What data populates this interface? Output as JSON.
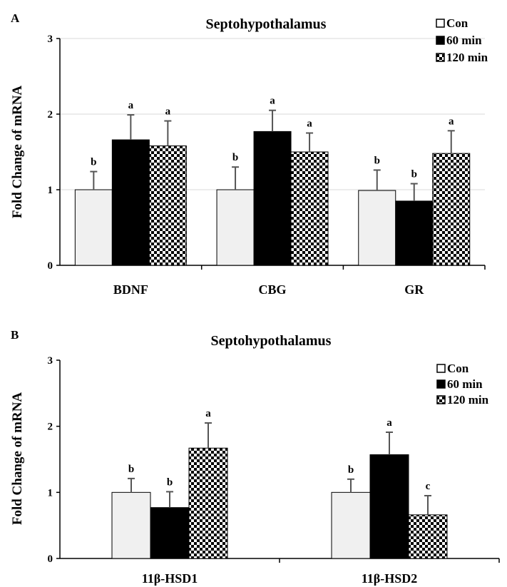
{
  "colors": {
    "con": "#f0f0f0",
    "m60": "#000000",
    "m120_light": "#ffffff",
    "m120_dark": "#000000",
    "grid": "#d9d9d9",
    "error_bar": "#555555"
  },
  "chart_data": [
    {
      "panel": "A",
      "type": "bar",
      "title": "Septohypothalamus",
      "ylabel": "Fold Change of mRNA",
      "xlabel": "",
      "ylim": [
        0,
        3
      ],
      "yticks": [
        "0",
        "1",
        "2",
        "3"
      ],
      "grid": true,
      "legend_position": "top-right",
      "categories": [
        "BDNF",
        "CBG",
        "GR"
      ],
      "series": [
        {
          "name": "Con",
          "pattern": "light-gray",
          "values": [
            1.0,
            1.0,
            0.99
          ],
          "errors": [
            0.24,
            0.3,
            0.27
          ],
          "labels": [
            "b",
            "b",
            "b"
          ]
        },
        {
          "name": "60 min",
          "pattern": "solid-black",
          "values": [
            1.66,
            1.77,
            0.85
          ],
          "errors": [
            0.33,
            0.28,
            0.23
          ],
          "labels": [
            "a",
            "a",
            "b"
          ]
        },
        {
          "name": "120 min",
          "pattern": "checker",
          "values": [
            1.58,
            1.5,
            1.48
          ],
          "errors": [
            0.33,
            0.25,
            0.3
          ],
          "labels": [
            "a",
            "a",
            "a"
          ]
        }
      ]
    },
    {
      "panel": "B",
      "type": "bar",
      "title": "Septohypothalamus",
      "ylabel": "Fold Change of mRNA",
      "xlabel": "",
      "ylim": [
        0,
        3
      ],
      "yticks": [
        "0",
        "1",
        "2",
        "3"
      ],
      "grid": false,
      "legend_position": "top-right",
      "categories": [
        "11β-HSD1",
        "11β-HSD2"
      ],
      "series": [
        {
          "name": "Con",
          "pattern": "light-gray",
          "values": [
            1.0,
            1.0
          ],
          "errors": [
            0.21,
            0.2
          ],
          "labels": [
            "b",
            "b"
          ]
        },
        {
          "name": "60 min",
          "pattern": "solid-black",
          "values": [
            0.77,
            1.57
          ],
          "errors": [
            0.24,
            0.34
          ],
          "labels": [
            "b",
            "a"
          ]
        },
        {
          "name": "120 min",
          "pattern": "checker",
          "values": [
            1.67,
            0.66
          ],
          "errors": [
            0.38,
            0.29
          ],
          "labels": [
            "a",
            "c"
          ]
        }
      ]
    }
  ]
}
